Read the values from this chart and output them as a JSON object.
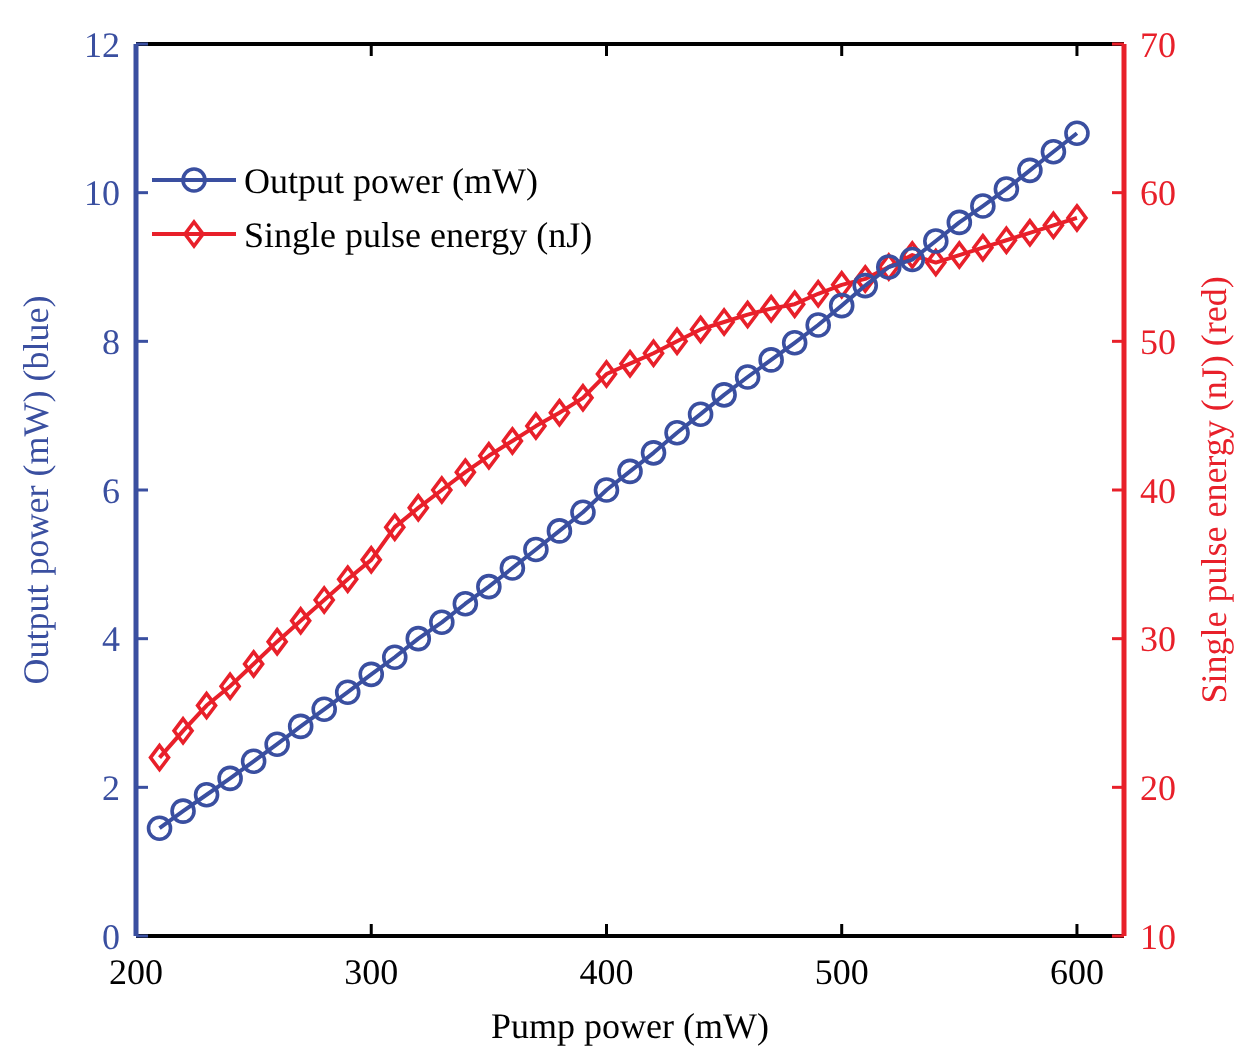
{
  "chart_data": {
    "type": "line",
    "xlabel": "Pump power (mW)",
    "ylabel": "Output power (mW) (blue)",
    "y2label": "Single pulse energy (nJ) (red)",
    "x": [
      210,
      220,
      230,
      240,
      250,
      260,
      270,
      280,
      290,
      300,
      310,
      320,
      330,
      340,
      350,
      360,
      370,
      380,
      390,
      400,
      410,
      420,
      430,
      440,
      450,
      460,
      470,
      480,
      490,
      500,
      510,
      520,
      530,
      540,
      550,
      560,
      570,
      580,
      590,
      600
    ],
    "series": [
      {
        "name": "Output power (mW)",
        "color": "#3a4fa0",
        "marker": "circle",
        "values": [
          1.45,
          1.68,
          1.9,
          2.12,
          2.35,
          2.58,
          2.82,
          3.05,
          3.28,
          3.52,
          3.75,
          4.0,
          4.22,
          4.47,
          4.7,
          4.95,
          5.2,
          5.45,
          5.7,
          6.0,
          6.25,
          6.5,
          6.77,
          7.02,
          7.28,
          7.52,
          7.75,
          7.98,
          8.22,
          8.48,
          8.75,
          9.0,
          9.1,
          9.35,
          9.6,
          9.82,
          10.05,
          10.3,
          10.55,
          10.8
        ]
      },
      {
        "name": "Single pulse energy (nJ)",
        "color": "#e8202a",
        "marker": "diamond",
        "axis": "y2",
        "values": [
          22,
          23.8,
          25.5,
          26.8,
          28.3,
          29.8,
          31.2,
          32.6,
          34,
          35.3,
          37.5,
          38.8,
          40,
          41.2,
          42.3,
          43.3,
          44.3,
          45.2,
          46.2,
          47.8,
          48.5,
          49.2,
          50,
          50.8,
          51.3,
          51.8,
          52.2,
          52.5,
          53.2,
          53.8,
          54.2,
          55,
          55.8,
          55.3,
          55.8,
          56.3,
          56.8,
          57.3,
          57.8,
          58.3
        ]
      }
    ],
    "xlim": [
      200,
      620
    ],
    "xticks": [
      200,
      300,
      400,
      500,
      600
    ],
    "ylim": [
      0,
      12
    ],
    "yticks": [
      0,
      2,
      4,
      6,
      8,
      10,
      12
    ],
    "y2lim": [
      10,
      70
    ],
    "y2ticks": [
      10,
      20,
      30,
      40,
      50,
      60,
      70
    ],
    "grid": false,
    "legend": "top left",
    "line_style": "solid"
  }
}
